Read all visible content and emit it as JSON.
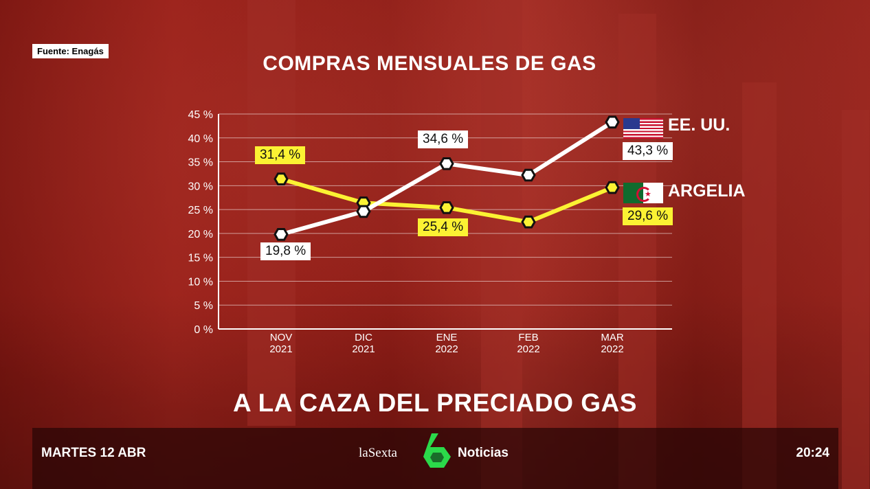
{
  "source": "Fuente: Enagás",
  "headline": "A LA CAZA DEL PRECIADO GAS",
  "bottom_bar": {
    "date": "MARTES 12 ABR",
    "brand": "laSexta",
    "program": "Noticias",
    "time": "20:24"
  },
  "colors": {
    "usa": "#ffffff",
    "argelia": "#fbf233",
    "logo_green": "#2bd94a"
  },
  "chart_data": {
    "type": "line",
    "title": "COMPRAS MENSUALES DE GAS",
    "xlabel": "",
    "ylabel": "",
    "ylim": [
      0,
      45
    ],
    "grid": true,
    "yticks": [
      "0 %",
      "5 %",
      "10 %",
      "15 %",
      "20 %",
      "25 %",
      "30 %",
      "35 %",
      "40 %",
      "45 %"
    ],
    "categories": [
      [
        "NOV",
        "2021"
      ],
      [
        "DIC",
        "2021"
      ],
      [
        "ENE",
        "2022"
      ],
      [
        "FEB",
        "2022"
      ],
      [
        "MAR",
        "2022"
      ]
    ],
    "series": [
      {
        "name": "EE. UU.",
        "color": "#ffffff",
        "values": [
          19.8,
          24.6,
          34.6,
          32.2,
          43.3
        ],
        "labels": [
          "19,8 %",
          null,
          "34,6 %",
          null,
          "43,3 %"
        ]
      },
      {
        "name": "ARGELIA",
        "color": "#fbf233",
        "values": [
          31.4,
          26.4,
          25.4,
          22.4,
          29.6
        ],
        "labels": [
          "31,4 %",
          null,
          "25,4 %",
          null,
          "29,6 %"
        ]
      }
    ]
  }
}
